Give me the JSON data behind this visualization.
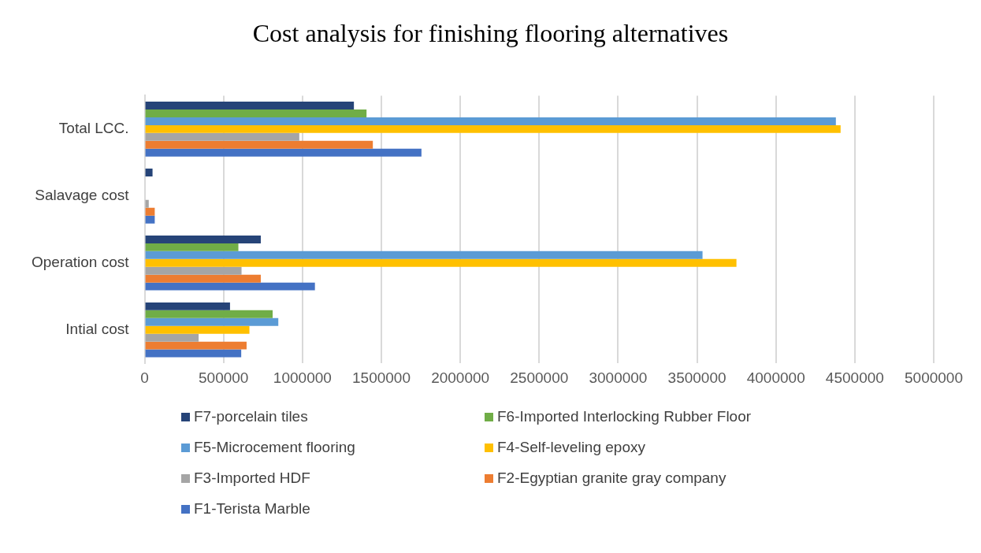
{
  "chart_data": {
    "type": "bar",
    "orientation": "horizontal",
    "title": "Cost analysis for finishing flooring alternatives",
    "categories": [
      "Total LCC.",
      "Salavage cost",
      "Operation cost",
      "Intial cost"
    ],
    "series": [
      {
        "name": "F7-porcelain tiles",
        "color": "#264478",
        "values": [
          1326000,
          50000,
          736000,
          541000
        ]
      },
      {
        "name": "F6-Imported Interlocking Rubber Floor",
        "color": "#70ad47",
        "values": [
          1406000,
          0,
          594000,
          811000
        ]
      },
      {
        "name": "F5-Microcement flooring",
        "color": "#5b9bd5",
        "values": [
          4380000,
          0,
          3535000,
          847000
        ]
      },
      {
        "name": "F4-Self-leveling epoxy",
        "color": "#ffc000",
        "values": [
          4410000,
          0,
          3750000,
          664000
        ]
      },
      {
        "name": "F3-Imported HDF",
        "color": "#a5a5a5",
        "values": [
          980000,
          26000,
          614000,
          342000
        ]
      },
      {
        "name": "F2-Egyptian granite gray company",
        "color": "#ed7d31",
        "values": [
          1446000,
          64000,
          736000,
          646000
        ]
      },
      {
        "name": "F1-Terista Marble",
        "color": "#4472c4",
        "values": [
          1754000,
          64000,
          1079000,
          612000
        ]
      }
    ],
    "xlim": [
      0,
      5000000
    ],
    "xticks": [
      0,
      500000,
      1000000,
      1500000,
      2000000,
      2500000,
      3000000,
      3500000,
      4000000,
      4500000,
      5000000
    ],
    "grid": "x",
    "legend": "bottom"
  }
}
